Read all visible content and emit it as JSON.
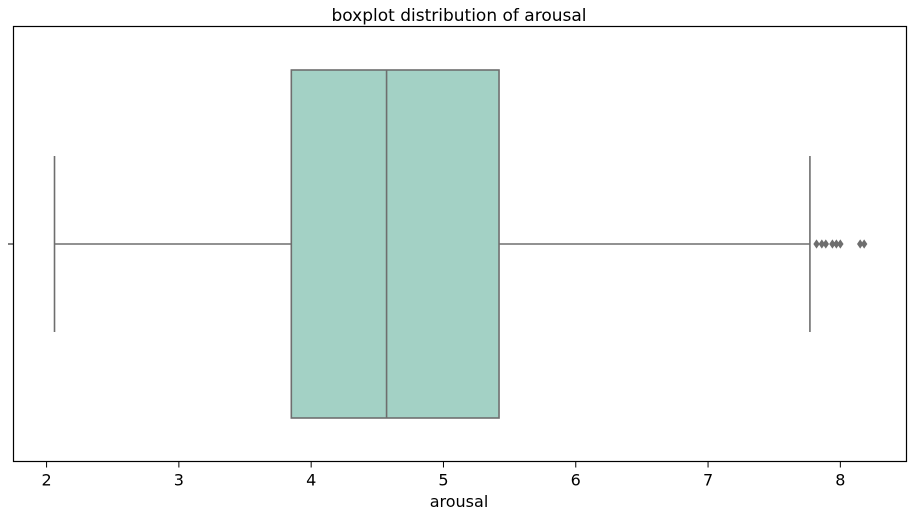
{
  "chart_data": {
    "type": "boxplot",
    "title": "boxplot distribution of arousal",
    "xlabel": "arousal",
    "ylabel": "",
    "xlim": [
      1.75,
      8.5
    ],
    "xticks": [
      "2",
      "3",
      "4",
      "5",
      "6",
      "7",
      "8"
    ],
    "xtick_values": [
      2,
      3,
      4,
      5,
      6,
      7,
      8
    ],
    "grid": false,
    "box": {
      "whisker_low": 2.06,
      "q1": 3.85,
      "median": 4.57,
      "q3": 5.42,
      "whisker_high": 7.77,
      "outliers": [
        7.82,
        7.86,
        7.89,
        7.94,
        7.97,
        8.0,
        8.15,
        8.18
      ]
    },
    "colors": {
      "box_fill": "#a3d1c5",
      "line": "#6e6e6e",
      "outlier": "#6e6e6e",
      "axis": "#000000"
    }
  }
}
